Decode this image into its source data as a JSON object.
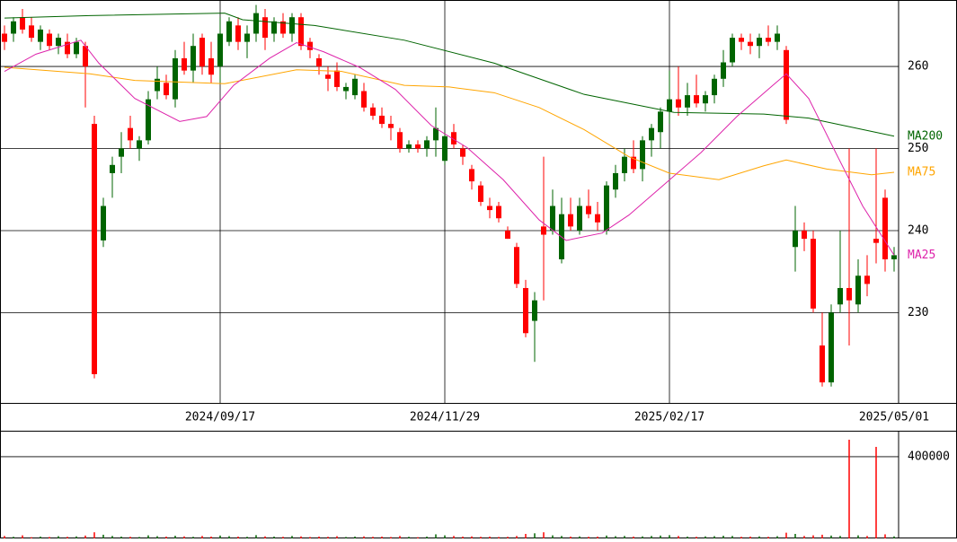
{
  "chart_data": {
    "type": "candlestick",
    "categories": [
      null,
      null,
      null,
      null,
      null,
      null,
      null,
      null,
      null,
      null,
      null,
      null,
      null,
      null,
      null,
      null,
      null,
      null,
      null,
      null,
      null,
      null,
      null,
      null,
      "2024/09/17",
      null,
      null,
      null,
      null,
      null,
      null,
      null,
      null,
      null,
      null,
      null,
      null,
      null,
      null,
      null,
      null,
      null,
      null,
      null,
      null,
      null,
      null,
      null,
      null,
      "2024/11/29",
      null,
      null,
      null,
      null,
      null,
      null,
      null,
      null,
      null,
      null,
      null,
      null,
      null,
      null,
      null,
      null,
      null,
      null,
      null,
      null,
      null,
      null,
      null,
      null,
      "2025/02/17",
      null,
      null,
      null,
      null,
      null,
      null,
      null,
      null,
      null,
      null,
      null,
      null,
      null,
      null,
      null,
      null,
      null,
      null,
      null,
      null,
      null,
      null,
      null,
      null,
      "2025/05/01"
    ],
    "ohlc": [
      [
        264,
        265,
        262,
        263
      ],
      [
        264,
        266,
        263,
        265.5
      ],
      [
        266,
        267,
        264,
        264.5
      ],
      [
        265,
        266,
        263,
        263.5
      ],
      [
        263,
        265,
        262,
        264.5
      ],
      [
        264,
        264.5,
        262,
        262.5
      ],
      [
        262.5,
        264,
        261.5,
        263.5
      ],
      [
        263,
        264,
        261,
        261.5
      ],
      [
        261.5,
        263.5,
        261,
        263
      ],
      [
        262.5,
        263,
        255,
        260
      ],
      [
        253,
        254,
        222,
        222.5
      ],
      [
        238.8,
        244,
        238,
        243
      ],
      [
        247,
        249,
        244,
        248
      ],
      [
        249,
        252,
        247,
        250
      ],
      [
        252.5,
        254,
        250,
        251
      ],
      [
        250,
        251.5,
        248.5,
        251
      ],
      [
        251,
        257,
        250.5,
        256
      ],
      [
        257,
        260,
        256,
        258.5
      ],
      [
        258,
        259,
        256,
        256.5
      ],
      [
        256,
        262,
        255,
        261
      ],
      [
        261,
        263,
        259,
        259.5
      ],
      [
        259.5,
        264,
        258,
        262.5
      ],
      [
        263.5,
        264,
        259,
        260
      ],
      [
        261,
        263,
        258,
        259
      ],
      [
        260,
        266,
        258,
        264
      ],
      [
        263,
        266,
        262.5,
        265.5
      ],
      [
        265,
        266,
        262,
        263
      ],
      [
        263,
        265,
        261,
        264
      ],
      [
        264,
        267.5,
        263,
        266.5
      ],
      [
        266,
        267,
        262,
        263.5
      ],
      [
        264,
        266,
        263,
        265.5
      ],
      [
        265.5,
        266.5,
        263.5,
        264
      ],
      [
        264,
        266.5,
        263,
        266
      ],
      [
        266,
        266.5,
        262,
        262.5
      ],
      [
        263,
        263.5,
        261,
        262
      ],
      [
        261,
        261.5,
        259,
        260
      ],
      [
        259,
        260,
        257,
        258.5
      ],
      [
        259.5,
        260.5,
        257,
        257.5
      ],
      [
        257,
        258,
        256,
        257.5
      ],
      [
        256.5,
        259,
        256,
        258.5
      ],
      [
        257,
        258,
        254.5,
        255
      ],
      [
        255,
        255.5,
        253.5,
        254
      ],
      [
        254,
        255,
        252.5,
        253
      ],
      [
        253,
        254,
        251,
        252.5
      ],
      [
        252,
        252.5,
        249.5,
        250
      ],
      [
        250,
        251,
        249.5,
        250.5
      ],
      [
        250.5,
        251,
        249.5,
        250
      ],
      [
        250,
        251.5,
        249,
        251
      ],
      [
        251,
        255,
        249,
        252.5
      ],
      [
        248.5,
        252,
        248,
        251.5
      ],
      [
        252,
        253,
        250,
        250.5
      ],
      [
        250,
        250.5,
        248,
        249
      ],
      [
        247.5,
        248,
        245,
        246
      ],
      [
        245.5,
        246,
        243,
        243.5
      ],
      [
        243,
        244,
        241.5,
        242.5
      ],
      [
        243,
        243.5,
        241,
        241.5
      ],
      [
        240,
        240.5,
        239,
        239
      ],
      [
        238,
        238.5,
        233,
        233.5
      ],
      [
        233,
        234,
        227,
        227.5
      ],
      [
        229,
        232.5,
        224,
        231.5
      ],
      [
        240.5,
        249,
        231.5,
        239.5
      ],
      [
        240,
        245,
        239.5,
        243
      ],
      [
        236.5,
        244,
        236,
        242
      ],
      [
        242,
        244,
        240,
        240.5
      ],
      [
        240,
        244,
        239.5,
        243
      ],
      [
        243,
        245,
        241.5,
        242
      ],
      [
        242,
        243.5,
        240,
        241
      ],
      [
        240,
        246,
        239.5,
        245.5
      ],
      [
        245,
        248,
        244,
        247
      ],
      [
        247,
        250,
        246,
        249
      ],
      [
        249,
        251,
        247,
        247.5
      ],
      [
        247.5,
        251.5,
        246,
        251
      ],
      [
        251,
        253,
        249,
        252.5
      ],
      [
        252,
        255,
        250,
        254.5
      ],
      [
        254.5,
        259.5,
        253,
        256
      ],
      [
        256,
        260,
        254,
        255
      ],
      [
        255,
        258,
        254,
        256.5
      ],
      [
        256.5,
        259,
        255,
        255.5
      ],
      [
        255.5,
        257,
        254.5,
        256.5
      ],
      [
        256.5,
        259,
        255.5,
        258.5
      ],
      [
        258.5,
        262,
        257.5,
        260.5
      ],
      [
        260.5,
        264,
        260,
        263.5
      ],
      [
        263.5,
        264,
        262,
        263
      ],
      [
        263,
        264,
        261.5,
        262.5
      ],
      [
        262.5,
        264,
        261,
        263.5
      ],
      [
        263.5,
        265,
        262.5,
        263
      ],
      [
        263,
        265,
        262,
        264
      ],
      [
        262,
        262.5,
        253,
        253.5
      ],
      [
        238,
        243,
        235,
        240
      ],
      [
        240,
        241,
        237.5,
        239
      ],
      [
        239,
        240,
        230,
        230.5
      ],
      [
        226,
        230,
        221,
        221.5
      ],
      [
        221.5,
        231,
        221,
        230
      ],
      [
        231,
        240,
        230,
        233
      ],
      [
        233,
        250,
        226,
        231.5
      ],
      [
        231,
        236.5,
        230,
        234.5
      ],
      [
        234.5,
        237,
        232,
        233.5
      ],
      [
        239,
        250,
        236,
        238.5
      ],
      [
        244,
        245,
        235,
        236.5
      ],
      [
        236.5,
        238,
        235,
        237
      ]
    ],
    "volume": [
      12000,
      8000,
      15000,
      6000,
      9000,
      7000,
      11000,
      8000,
      10000,
      14000,
      30000,
      18000,
      12000,
      9000,
      8000,
      7000,
      15000,
      11000,
      9000,
      13000,
      10000,
      8000,
      12000,
      9000,
      14000,
      11000,
      9000,
      8000,
      16000,
      10000,
      9000,
      8000,
      12000,
      10000,
      7000,
      9000,
      8000,
      11000,
      7000,
      9000,
      10000,
      8000,
      9000,
      7000,
      12000,
      8000,
      6000,
      9000,
      20000,
      15000,
      12000,
      9000,
      10000,
      8000,
      9000,
      7000,
      8000,
      12000,
      22000,
      25000,
      30000,
      15000,
      12000,
      9000,
      10000,
      8000,
      9000,
      14000,
      11000,
      12000,
      9000,
      10000,
      12000,
      14000,
      16000,
      12000,
      9000,
      8000,
      10000,
      11000,
      13000,
      12000,
      8000,
      9000,
      10000,
      8000,
      11000,
      28000,
      22000,
      12000,
      15000,
      18000,
      14000,
      12000,
      483000,
      15000,
      12000,
      448000,
      20000,
      10000
    ],
    "series": [
      {
        "name": "MA200",
        "color": "#006400",
        "x": [
          0,
          9.5,
          24.5,
          26.5,
          34.5,
          44.5,
          54.5,
          64.5,
          74.5,
          84.5,
          89.5,
          99
        ],
        "values": [
          265.9,
          266.2,
          266.5,
          265.7,
          265,
          263.2,
          260.4,
          256.6,
          254.4,
          254.2,
          253.7,
          251.5
        ]
      },
      {
        "name": "MA75",
        "color": "#ffa500",
        "x": [
          0,
          9.5,
          14.5,
          24.5,
          32.5,
          37.5,
          44.5,
          49.5,
          54.5,
          59.5,
          64.5,
          69.5,
          74,
          79.5,
          84.5,
          87,
          91.5,
          96.5,
          99
        ],
        "values": [
          259.9,
          259.1,
          258.3,
          257.9,
          259.6,
          259.4,
          257.7,
          257.5,
          256.8,
          255,
          252.3,
          249,
          247,
          246.2,
          247.9,
          248.6,
          247.5,
          246.8,
          247.1
        ]
      },
      {
        "name": "MA25",
        "color": "#dd22aa",
        "x": [
          0,
          3.5,
          8.5,
          10.5,
          14.5,
          19.5,
          22.5,
          25.5,
          29.5,
          32.5,
          35.5,
          39.5,
          43.5,
          47.5,
          51.5,
          55.5,
          59.5,
          62.5,
          66.5,
          69.5,
          73.5,
          77.5,
          81.5,
          85.5,
          87,
          89.5,
          92.5,
          95.5,
          99
        ],
        "values": [
          259.4,
          261.5,
          263.2,
          260.4,
          256.1,
          253.3,
          253.9,
          257.7,
          261,
          262.9,
          261.8,
          259.9,
          257.2,
          252.8,
          250.1,
          246.2,
          241.3,
          238.8,
          239.7,
          241.9,
          245.7,
          249.5,
          253.9,
          257.7,
          259.1,
          256.1,
          249.5,
          243,
          237
        ]
      }
    ],
    "up_color": "#006400",
    "down_color": "#ff0000",
    "ylim": [
      219,
      268.1
    ],
    "yticks": [
      230,
      240,
      250,
      260
    ],
    "volume_ylim": [
      0,
      527000
    ],
    "volume_yticks": [
      400000
    ],
    "grid": true
  }
}
